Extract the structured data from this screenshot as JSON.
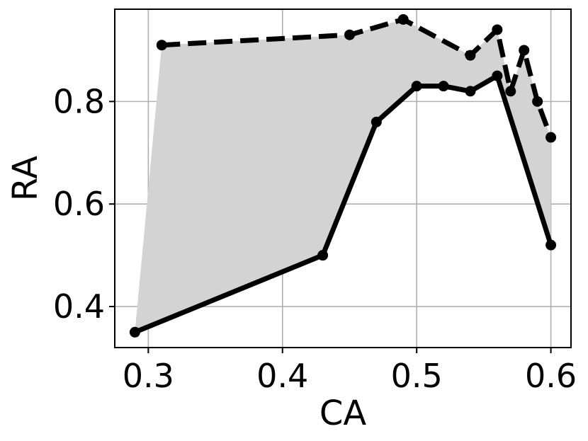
{
  "chart_data": {
    "type": "line",
    "title": "",
    "xlabel": "CA",
    "ylabel": "RA",
    "xlim": [
      0.275,
      0.615
    ],
    "ylim": [
      0.32,
      0.98
    ],
    "xticks": [
      0.3,
      0.4,
      0.5,
      0.6
    ],
    "xtick_labels": [
      "0.3",
      "0.4",
      "0.5",
      "0.6"
    ],
    "yticks": [
      0.4,
      0.6,
      0.8
    ],
    "ytick_labels": [
      "0.4",
      "0.6",
      "0.8"
    ],
    "grid": true,
    "series": [
      {
        "style": "solid",
        "color": "#000000",
        "x": [
          0.29,
          0.43,
          0.47,
          0.5,
          0.52,
          0.54,
          0.56,
          0.6
        ],
        "y": [
          0.35,
          0.5,
          0.76,
          0.83,
          0.83,
          0.82,
          0.85,
          0.52
        ]
      },
      {
        "style": "dashed",
        "color": "#000000",
        "x": [
          0.31,
          0.45,
          0.49,
          0.54,
          0.56,
          0.57,
          0.58,
          0.59,
          0.6
        ],
        "y": [
          0.91,
          0.93,
          0.96,
          0.89,
          0.94,
          0.82,
          0.9,
          0.8,
          0.73
        ]
      }
    ],
    "fill_between": {
      "color": "#d3d3d3"
    }
  }
}
